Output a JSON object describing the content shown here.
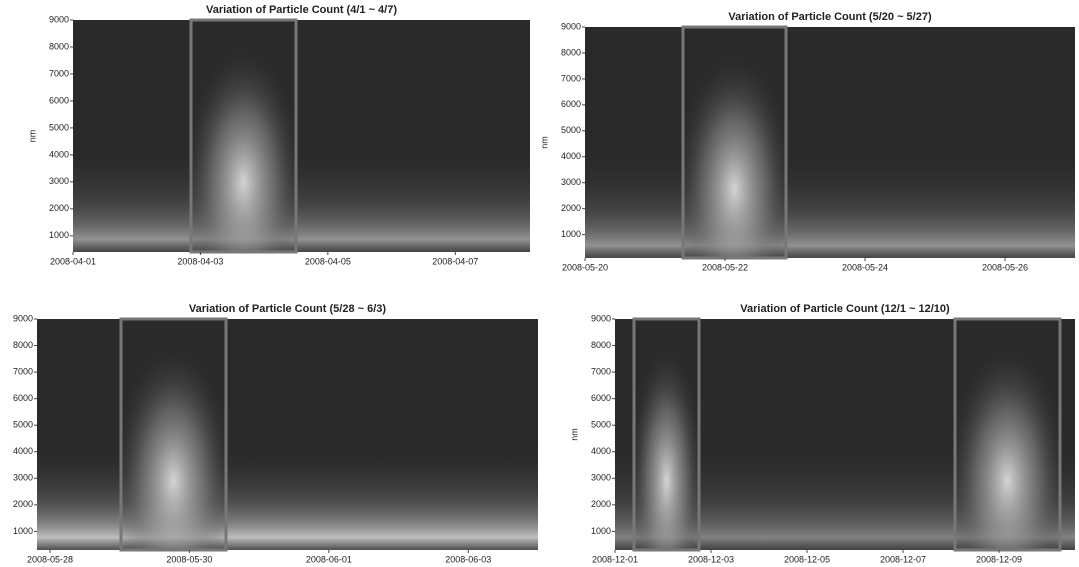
{
  "chart_data": [
    {
      "type": "heatmap",
      "title": "Variation of Particle Count (4/1 ~ 4/7)",
      "ylabel": "nm",
      "ylim": [
        400,
        9000
      ],
      "yticks": [
        1000,
        2000,
        3000,
        4000,
        5000,
        6000,
        7000,
        8000,
        9000
      ],
      "xlim": [
        "2008-04-01",
        "2008-04-08"
      ],
      "xticks": [
        "2008-04-01",
        "2008-04-03",
        "2008-04-05",
        "2008-04-07"
      ]
    },
    {
      "type": "heatmap",
      "title": "Variation of Particle Count (5/20 ~ 5/27)",
      "ylabel": "nm",
      "ylim": [
        100,
        9000
      ],
      "yticks": [
        1000,
        2000,
        3000,
        4000,
        5000,
        6000,
        7000,
        8000,
        9000
      ],
      "xlim": [
        "2008-05-20",
        "2008-05-27"
      ],
      "xticks": [
        "2008-05-20",
        "2008-05-22",
        "2008-05-24",
        "2008-05-26"
      ]
    },
    {
      "type": "heatmap",
      "title": "Variation of Particle Count (5/28 ~ 6/3)",
      "ylim": [
        300,
        9000
      ],
      "yticks": [
        1000,
        2000,
        3000,
        4000,
        5000,
        6000,
        7000,
        8000,
        9000
      ],
      "xlim": [
        "2008-05-28",
        "2008-06-04"
      ],
      "xticks": [
        "2008-05-28",
        "2008-05-30",
        "2008-06-01",
        "2008-06-03"
      ]
    },
    {
      "type": "heatmap",
      "title": "Variation of Particle Count (12/1 ~ 12/10)",
      "ylabel": "nm",
      "ylim": [
        300,
        9000
      ],
      "yticks": [
        1000,
        2000,
        3000,
        4000,
        5000,
        6000,
        7000,
        8000,
        9000
      ],
      "xlim": [
        "2008-12-01",
        "2008-12-10"
      ],
      "xticks": [
        "2008-12-01",
        "2008-12-03",
        "2008-12-05",
        "2008-12-07",
        "2008-12-09"
      ]
    }
  ]
}
